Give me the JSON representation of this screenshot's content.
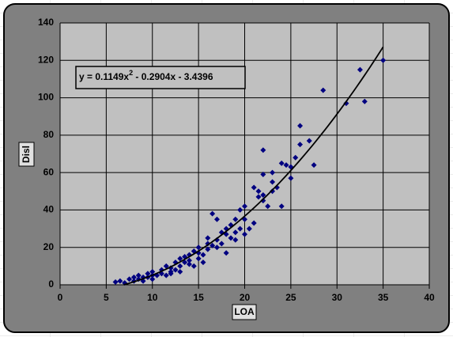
{
  "chart_data": {
    "type": "scatter",
    "x_label": "LOA",
    "y_label": "Disl",
    "xlim": [
      0,
      40
    ],
    "xticks": [
      0,
      5,
      10,
      15,
      20,
      25,
      30,
      35,
      40
    ],
    "ylim": [
      0,
      140
    ],
    "yticks": [
      0,
      20,
      40,
      60,
      80,
      100,
      120,
      140
    ],
    "grid": true,
    "color": "#000080",
    "x": [
      6,
      6.5,
      7,
      7.5,
      8,
      8,
      8.5,
      8.5,
      9,
      9,
      9.5,
      9.5,
      10,
      10,
      10,
      10.5,
      11,
      11,
      11.5,
      11.5,
      12,
      12,
      12,
      12.5,
      12.5,
      13,
      13,
      13,
      13.5,
      13.5,
      14,
      14,
      14,
      14.5,
      14.5,
      15,
      15,
      15,
      15.5,
      15.5,
      16,
      16,
      16,
      16.5,
      16.5,
      17,
      17,
      17,
      17.5,
      17.5,
      18,
      18,
      18,
      18.5,
      18.5,
      19,
      19,
      19,
      19.5,
      19.5,
      20,
      20,
      20,
      20.5,
      21,
      21,
      21.5,
      21.5,
      22,
      22,
      22,
      22,
      22.5,
      23,
      23,
      23,
      23.5,
      24,
      24,
      24.5,
      25,
      25,
      25.5,
      26,
      26,
      27,
      27.5,
      28.5,
      31,
      32.5,
      33,
      35
    ],
    "values": [
      1.5,
      2,
      1,
      3,
      2,
      4,
      3,
      5,
      4,
      2,
      6,
      4,
      5,
      7,
      3,
      5,
      6,
      8,
      5,
      10,
      7,
      9,
      6,
      12,
      8,
      10,
      14,
      7,
      12,
      15,
      11,
      16,
      13,
      10,
      18,
      14,
      17,
      20,
      16,
      12,
      19,
      22,
      25,
      21,
      38,
      20,
      24,
      35,
      28,
      22,
      27,
      30,
      17,
      25,
      32,
      24,
      28,
      35,
      30,
      40,
      27,
      35,
      42,
      30,
      33,
      52,
      47,
      50,
      45,
      59,
      72,
      48,
      42,
      50,
      55,
      60,
      52,
      65,
      42,
      64,
      57,
      63,
      68,
      85,
      75,
      77,
      64,
      104,
      97,
      115,
      98,
      120
    ],
    "trendline": {
      "equation": {
        "prefix": "y = 0.1149x",
        "exponent": "2",
        "suffix": " - 0.2904x - 3.4396"
      },
      "coefficients": [
        0.1149,
        -0.2904,
        -3.4396
      ],
      "xrange": [
        6.9,
        35
      ],
      "color": "#000000"
    }
  }
}
